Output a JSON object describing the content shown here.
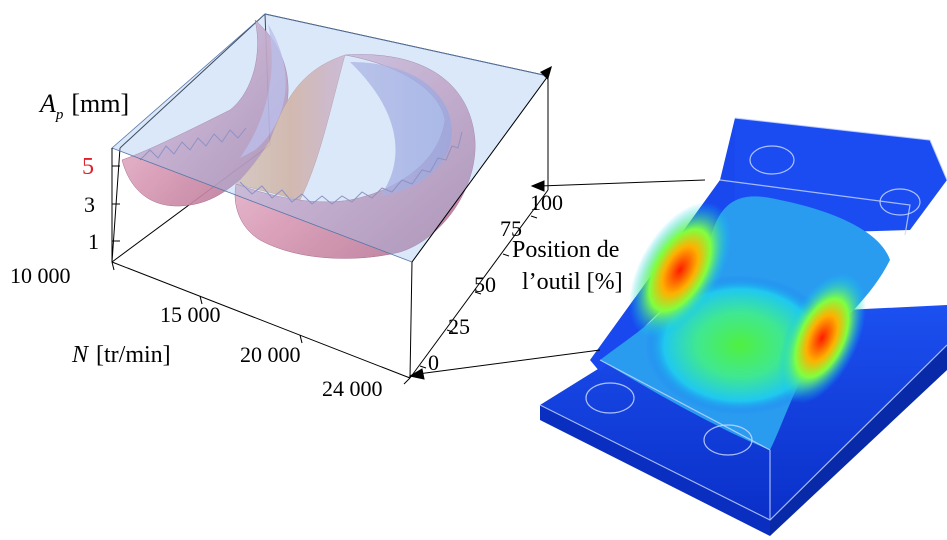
{
  "plot3d": {
    "z_label_symbol": "A",
    "z_label_subscript": "p",
    "z_label_unit": "[mm]",
    "z_ticks": [
      "5",
      "3",
      "1"
    ],
    "z_highlight_tick": "5",
    "x_label_symbol": "N",
    "x_label_unit": "[tr/min]",
    "x_ticks": [
      "10 000",
      "15 000",
      "20 000",
      "24 000"
    ],
    "y_label_line1": "Position de",
    "y_label_line2": "l’outil [%]",
    "y_ticks": [
      "0",
      "25",
      "50",
      "75",
      "100"
    ]
  },
  "colors": {
    "highlight_tick": "#e0202a",
    "plane": "#9fc3f0",
    "surface_pink": "#d9a3b8",
    "surface_orange": "#f4b58a",
    "part_blue": "#1746e6",
    "heat_green": "#38e060",
    "heat_red": "#e83018"
  },
  "part_model": {
    "name": "machined-pocket-part"
  }
}
